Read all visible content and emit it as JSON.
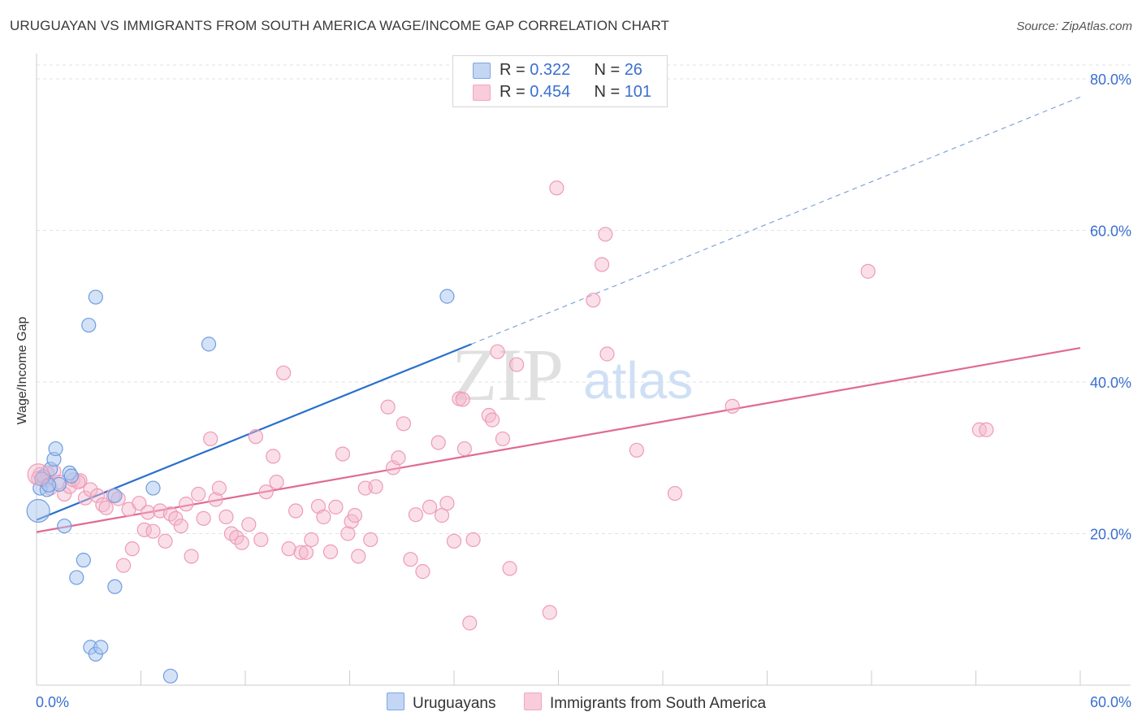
{
  "header": {
    "title": "URUGUAYAN VS IMMIGRANTS FROM SOUTH AMERICA WAGE/INCOME GAP CORRELATION CHART",
    "source": "Source: ZipAtlas.com"
  },
  "colors": {
    "blue": "#7aa6e6",
    "blue_line": "#2a6fcc",
    "pink": "#f2a6bf",
    "pink_line": "#e06a93",
    "axis_label": "#3a6fd0"
  },
  "legend": {
    "blue": {
      "r_label": "R = ",
      "r_value": "0.322",
      "n_label": "N = ",
      "n_value": "26"
    },
    "pink": {
      "r_label": "R = ",
      "r_value": "0.454",
      "n_label": "N = ",
      "n_value": "101"
    }
  },
  "watermark": {
    "zip": "ZIP",
    "atlas": "atlas"
  },
  "chart_data": {
    "type": "scatter",
    "ylabel": "Wage/Income Gap",
    "xlim": [
      0,
      60
    ],
    "ylim": [
      0,
      80
    ],
    "x_ticks": [
      "0.0%",
      "60.0%"
    ],
    "y_ticks": [
      {
        "value": 20,
        "label": "20.0%"
      },
      {
        "value": 40,
        "label": "40.0%"
      },
      {
        "value": 60,
        "label": "60.0%"
      },
      {
        "value": 80,
        "label": "80.0%"
      }
    ],
    "grid": true,
    "series": [
      {
        "name": "Uruguayans",
        "color": "blue",
        "points": [
          [
            0.1,
            23.0
          ],
          [
            0.2,
            26.0
          ],
          [
            0.4,
            27.5
          ],
          [
            0.6,
            25.8
          ],
          [
            0.8,
            28.5
          ],
          [
            1.0,
            29.8
          ],
          [
            1.1,
            31.2
          ],
          [
            1.3,
            26.5
          ],
          [
            1.6,
            21.0
          ],
          [
            1.9,
            28.0
          ],
          [
            2.0,
            27.6
          ],
          [
            2.3,
            14.2
          ],
          [
            2.7,
            16.5
          ],
          [
            3.0,
            47.5
          ],
          [
            3.4,
            51.2
          ],
          [
            3.1,
            5.0
          ],
          [
            3.4,
            4.1
          ],
          [
            3.7,
            5.0
          ],
          [
            4.5,
            25.0
          ],
          [
            4.5,
            13.0
          ],
          [
            6.7,
            26.0
          ],
          [
            7.7,
            1.2
          ],
          [
            9.9,
            45.0
          ],
          [
            23.6,
            51.3
          ],
          [
            0.3,
            27.2
          ],
          [
            0.7,
            26.4
          ]
        ],
        "trend": {
          "x": [
            0,
            25
          ],
          "y": [
            21.8,
            45.0
          ]
        },
        "trend_dashed": {
          "x": [
            25,
            60
          ],
          "y": [
            45.0,
            77.6
          ]
        }
      },
      {
        "name": "Immigrants from South America",
        "color": "pink",
        "points": [
          [
            0.2,
            27.8
          ],
          [
            0.5,
            27.0
          ],
          [
            0.8,
            26.0
          ],
          [
            1.0,
            28.2
          ],
          [
            1.3,
            26.8
          ],
          [
            1.6,
            25.2
          ],
          [
            1.9,
            26.2
          ],
          [
            2.1,
            27.1
          ],
          [
            2.5,
            27.0
          ],
          [
            2.8,
            24.7
          ],
          [
            3.1,
            25.8
          ],
          [
            3.5,
            25.0
          ],
          [
            3.8,
            23.8
          ],
          [
            4.0,
            23.4
          ],
          [
            4.4,
            25.0
          ],
          [
            4.7,
            24.6
          ],
          [
            5.0,
            15.8
          ],
          [
            5.3,
            23.2
          ],
          [
            5.5,
            18.0
          ],
          [
            5.9,
            24.0
          ],
          [
            6.2,
            20.5
          ],
          [
            6.4,
            22.8
          ],
          [
            6.7,
            20.3
          ],
          [
            7.1,
            23.0
          ],
          [
            7.4,
            19.0
          ],
          [
            7.7,
            22.6
          ],
          [
            8.0,
            22.0
          ],
          [
            8.3,
            21.0
          ],
          [
            8.6,
            23.9
          ],
          [
            8.9,
            17.0
          ],
          [
            9.3,
            25.2
          ],
          [
            9.6,
            22.0
          ],
          [
            10.0,
            32.5
          ],
          [
            10.3,
            24.5
          ],
          [
            10.5,
            26.0
          ],
          [
            10.9,
            22.2
          ],
          [
            11.2,
            20.0
          ],
          [
            11.5,
            19.5
          ],
          [
            11.8,
            18.8
          ],
          [
            12.2,
            21.2
          ],
          [
            12.6,
            32.8
          ],
          [
            12.9,
            19.2
          ],
          [
            13.2,
            25.5
          ],
          [
            13.6,
            30.2
          ],
          [
            13.8,
            26.8
          ],
          [
            14.2,
            41.2
          ],
          [
            14.5,
            18.0
          ],
          [
            14.9,
            23.0
          ],
          [
            15.2,
            17.5
          ],
          [
            15.5,
            17.5
          ],
          [
            15.8,
            19.2
          ],
          [
            16.2,
            23.6
          ],
          [
            16.5,
            22.2
          ],
          [
            16.9,
            17.6
          ],
          [
            17.2,
            23.5
          ],
          [
            17.6,
            30.5
          ],
          [
            17.9,
            20.0
          ],
          [
            18.1,
            21.6
          ],
          [
            18.3,
            22.4
          ],
          [
            18.5,
            17.0
          ],
          [
            18.9,
            26.0
          ],
          [
            19.2,
            19.2
          ],
          [
            19.5,
            26.2
          ],
          [
            20.2,
            36.7
          ],
          [
            20.5,
            28.7
          ],
          [
            20.8,
            30.0
          ],
          [
            21.1,
            34.5
          ],
          [
            21.5,
            16.6
          ],
          [
            21.8,
            22.5
          ],
          [
            22.2,
            15.0
          ],
          [
            22.6,
            23.5
          ],
          [
            23.1,
            32.0
          ],
          [
            23.3,
            22.4
          ],
          [
            23.6,
            24.0
          ],
          [
            24.0,
            19.0
          ],
          [
            24.3,
            37.8
          ],
          [
            24.6,
            31.2
          ],
          [
            24.9,
            8.2
          ],
          [
            25.1,
            19.2
          ],
          [
            26.0,
            35.6
          ],
          [
            26.2,
            35.0
          ],
          [
            26.8,
            32.5
          ],
          [
            26.5,
            44.0
          ],
          [
            27.2,
            15.4
          ],
          [
            27.6,
            42.3
          ],
          [
            29.5,
            9.6
          ],
          [
            29.9,
            65.6
          ],
          [
            32.0,
            50.8
          ],
          [
            32.5,
            55.5
          ],
          [
            32.7,
            59.5
          ],
          [
            32.8,
            43.7
          ],
          [
            34.5,
            31.0
          ],
          [
            36.7,
            25.3
          ],
          [
            40.0,
            36.8
          ],
          [
            47.8,
            54.6
          ],
          [
            54.2,
            33.7
          ],
          [
            54.6,
            33.7
          ],
          [
            0.1,
            27.3
          ],
          [
            0.6,
            28.0
          ],
          [
            2.4,
            26.8
          ],
          [
            24.5,
            37.7
          ]
        ],
        "trend": {
          "x": [
            0,
            60
          ],
          "y": [
            20.2,
            44.5
          ]
        }
      }
    ]
  }
}
